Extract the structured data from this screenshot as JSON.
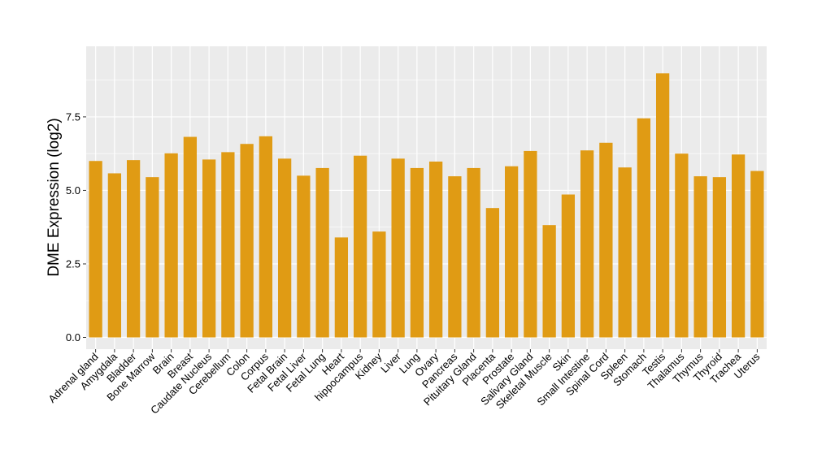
{
  "chart_data": {
    "type": "bar",
    "ylabel": "DME Expression (log2)",
    "xlabel": "",
    "title": "",
    "ylim": [
      -0.4,
      9.9
    ],
    "yticks": [
      0.0,
      2.5,
      5.0,
      7.5
    ],
    "ytick_labels": [
      "0.0",
      "2.5",
      "5.0",
      "7.5"
    ],
    "grid": true,
    "legend": "none",
    "colors": {
      "bar": "#E09B14",
      "panel": "#EBEBEB",
      "grid": "#FFFFFF",
      "tick": "#333333"
    },
    "categories": [
      "Adrenal gland",
      "Amygdala",
      "Bladder",
      "Bone Marrow",
      "Brain",
      "Breast",
      "Caudate Nucleus",
      "Cerebellum",
      "Colon",
      "Corpus",
      "Fetal Brain",
      "Fetal Liver",
      "Fetal Lung",
      "Heart",
      "hippocampus",
      "Kidney",
      "Liver",
      "Lung",
      "Ovary",
      "Pancreas",
      "Pituitary Gland",
      "Placenta",
      "Prostate",
      "Salivary Gland",
      "Skeletal Muscle",
      "Skin",
      "Small Intestine",
      "Spinal Cord",
      "Spleen",
      "Stomach",
      "Testis",
      "Thalamus",
      "Thymus",
      "Thyroid",
      "Trachea",
      "Uterus"
    ],
    "values": [
      6.0,
      5.58,
      6.03,
      5.45,
      6.26,
      6.82,
      6.05,
      6.3,
      6.58,
      6.84,
      6.08,
      5.5,
      5.76,
      3.4,
      6.18,
      3.6,
      6.08,
      5.76,
      5.98,
      5.48,
      5.76,
      4.4,
      5.82,
      6.34,
      3.82,
      4.86,
      6.36,
      6.62,
      5.78,
      7.45,
      8.98,
      6.25,
      5.48,
      5.45,
      6.22,
      5.66
    ]
  }
}
